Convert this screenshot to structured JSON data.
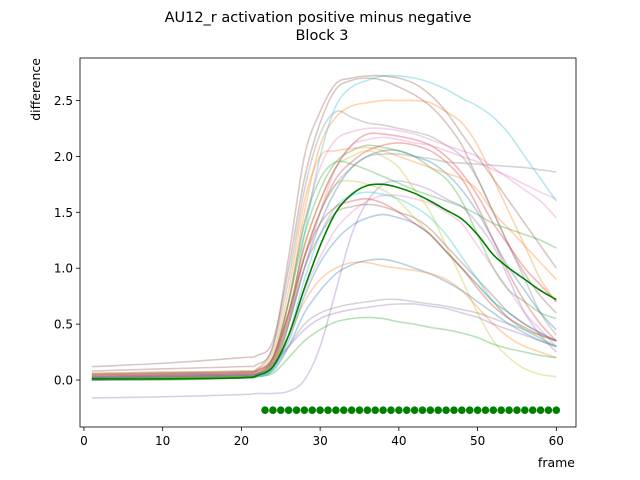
{
  "chart_data": {
    "type": "line",
    "title": "AU12_r activation positive minus negative",
    "subtitle": "Block 3",
    "xlabel": "frame",
    "ylabel": "difference",
    "xlim": [
      -0.5,
      62.5
    ],
    "ylim": [
      -0.42,
      2.88
    ],
    "x_ticks": [
      0,
      10,
      20,
      30,
      40,
      50,
      60
    ],
    "y_ticks": [
      0.0,
      0.5,
      1.0,
      1.5,
      2.0,
      2.5
    ],
    "grid": false,
    "legend": "none",
    "x_anchor_frames": [
      1,
      10,
      20,
      22,
      24,
      26,
      28,
      30,
      32,
      34,
      36,
      38,
      40,
      42,
      44,
      46,
      48,
      50,
      52,
      54,
      56,
      58,
      60
    ],
    "mean_series": {
      "color": "#008000",
      "values": [
        0.01,
        0.01,
        0.02,
        0.04,
        0.12,
        0.4,
        0.82,
        1.2,
        1.5,
        1.66,
        1.74,
        1.75,
        1.72,
        1.67,
        1.6,
        1.52,
        1.44,
        1.3,
        1.12,
        1.0,
        0.9,
        0.8,
        0.72
      ]
    },
    "individual_series": [
      {
        "color": "#1f77b4",
        "values": [
          0.02,
          0.03,
          0.04,
          0.05,
          0.15,
          0.5,
          1.0,
          1.4,
          1.7,
          1.9,
          2.0,
          2.05,
          2.05,
          2.0,
          1.95,
          1.85,
          1.7,
          1.5,
          1.25,
          1.0,
          0.8,
          0.6,
          0.45
        ]
      },
      {
        "color": "#ff7f0e",
        "values": [
          0.05,
          0.06,
          0.07,
          0.09,
          0.2,
          0.7,
          1.5,
          2.1,
          2.35,
          2.45,
          2.48,
          2.5,
          2.5,
          2.5,
          2.48,
          2.4,
          2.3,
          2.1,
          1.8,
          1.5,
          1.2,
          0.9,
          0.7
        ]
      },
      {
        "color": "#2ca02c",
        "values": [
          0.0,
          0.0,
          0.02,
          0.04,
          0.2,
          0.7,
          1.3,
          1.7,
          1.95,
          2.05,
          2.1,
          2.08,
          2.05,
          2.0,
          1.9,
          1.8,
          1.6,
          1.3,
          1.0,
          0.8,
          0.7,
          0.6,
          0.55
        ]
      },
      {
        "color": "#d62728",
        "values": [
          0.03,
          0.04,
          0.05,
          0.06,
          0.18,
          0.55,
          1.1,
          1.5,
          1.8,
          1.95,
          2.05,
          2.1,
          2.12,
          2.1,
          2.05,
          1.95,
          1.8,
          1.55,
          1.25,
          0.95,
          0.7,
          0.5,
          0.35
        ]
      },
      {
        "color": "#9467bd",
        "values": [
          -0.16,
          -0.15,
          -0.13,
          -0.12,
          -0.12,
          -0.1,
          0.0,
          0.3,
          0.8,
          1.3,
          1.6,
          1.75,
          1.78,
          1.75,
          1.7,
          1.62,
          1.55,
          1.4,
          1.2,
          0.9,
          0.6,
          0.4,
          0.25
        ]
      },
      {
        "color": "#8c564b",
        "values": [
          0.12,
          0.15,
          0.2,
          0.22,
          0.35,
          1.0,
          1.8,
          2.3,
          2.6,
          2.68,
          2.7,
          2.68,
          2.62,
          2.55,
          2.45,
          2.3,
          2.1,
          1.8,
          1.5,
          1.2,
          0.95,
          0.75,
          0.6
        ]
      },
      {
        "color": "#e377c2",
        "values": [
          0.02,
          0.03,
          0.04,
          0.06,
          0.12,
          0.4,
          0.8,
          1.1,
          1.35,
          1.5,
          1.6,
          1.65,
          1.65,
          1.62,
          1.58,
          1.5,
          1.4,
          1.2,
          1.0,
          0.8,
          0.6,
          0.45,
          0.3
        ]
      },
      {
        "color": "#7f7f7f",
        "values": [
          0.06,
          0.07,
          0.08,
          0.1,
          0.3,
          0.9,
          1.7,
          2.2,
          2.4,
          2.35,
          2.3,
          2.28,
          2.25,
          2.22,
          2.18,
          2.1,
          2.0,
          1.8,
          1.5,
          1.2,
          0.9,
          0.6,
          0.4
        ]
      },
      {
        "color": "#bcbd22",
        "values": [
          0.0,
          0.02,
          0.03,
          0.05,
          0.2,
          0.6,
          1.2,
          1.6,
          1.9,
          2.0,
          2.05,
          2.0,
          1.9,
          1.7,
          1.5,
          1.2,
          0.9,
          0.6,
          0.35,
          0.2,
          0.1,
          0.05,
          0.03
        ]
      },
      {
        "color": "#17becf",
        "values": [
          0.01,
          0.02,
          0.03,
          0.05,
          0.1,
          0.5,
          1.3,
          2.0,
          2.45,
          2.62,
          2.68,
          2.72,
          2.72,
          2.7,
          2.66,
          2.6,
          2.52,
          2.45,
          2.35,
          2.2,
          2.0,
          1.8,
          1.6
        ]
      },
      {
        "color": "#1f77b4",
        "values": [
          0.0,
          0.01,
          0.02,
          0.03,
          0.08,
          0.3,
          0.6,
          0.8,
          0.95,
          1.03,
          1.07,
          1.08,
          1.05,
          1.0,
          0.95,
          0.88,
          0.8,
          0.7,
          0.6,
          0.5,
          0.42,
          0.35,
          0.3
        ]
      },
      {
        "color": "#ff7f0e",
        "values": [
          0.04,
          0.05,
          0.06,
          0.07,
          0.15,
          0.4,
          0.7,
          0.9,
          1.0,
          1.05,
          1.05,
          1.02,
          1.0,
          0.98,
          0.95,
          0.9,
          0.8,
          0.65,
          0.5,
          0.38,
          0.3,
          0.25,
          0.2
        ]
      },
      {
        "color": "#2ca02c",
        "values": [
          0.0,
          0.01,
          0.02,
          0.03,
          0.06,
          0.2,
          0.35,
          0.45,
          0.52,
          0.55,
          0.56,
          0.55,
          0.52,
          0.5,
          0.47,
          0.45,
          0.42,
          0.38,
          0.32,
          0.28,
          0.25,
          0.22,
          0.2
        ]
      },
      {
        "color": "#d62728",
        "values": [
          0.01,
          0.02,
          0.03,
          0.05,
          0.15,
          0.6,
          1.2,
          1.6,
          1.9,
          2.1,
          2.2,
          2.2,
          2.18,
          2.15,
          2.1,
          2.0,
          1.85,
          1.65,
          1.4,
          1.2,
          1.0,
          0.85,
          0.7
        ]
      },
      {
        "color": "#9467bd",
        "values": [
          0.05,
          0.06,
          0.07,
          0.08,
          0.15,
          0.3,
          0.45,
          0.55,
          0.6,
          0.63,
          0.65,
          0.67,
          0.68,
          0.68,
          0.66,
          0.64,
          0.6,
          0.56,
          0.5,
          0.45,
          0.4,
          0.35,
          0.3
        ]
      },
      {
        "color": "#8c564b",
        "values": [
          0.02,
          0.03,
          0.04,
          0.05,
          0.12,
          0.5,
          1.0,
          1.3,
          1.5,
          1.55,
          1.57,
          1.55,
          1.5,
          1.45,
          1.35,
          1.2,
          1.05,
          0.9,
          0.75,
          0.6,
          0.5,
          0.42,
          0.35
        ]
      },
      {
        "color": "#e377c2",
        "values": [
          0.03,
          0.04,
          0.05,
          0.06,
          0.2,
          0.7,
          1.4,
          1.9,
          2.15,
          2.22,
          2.25,
          2.25,
          2.23,
          2.2,
          2.15,
          2.1,
          2.05,
          2.0,
          1.9,
          1.8,
          1.7,
          1.6,
          1.45
        ]
      },
      {
        "color": "#7f7f7f",
        "values": [
          0.02,
          0.03,
          0.04,
          0.05,
          0.1,
          0.3,
          0.5,
          0.6,
          0.65,
          0.68,
          0.7,
          0.72,
          0.72,
          0.7,
          0.68,
          0.66,
          0.63,
          0.6,
          0.55,
          0.5,
          0.45,
          0.4,
          0.35
        ]
      },
      {
        "color": "#bcbd22",
        "values": [
          0.01,
          0.02,
          0.03,
          0.05,
          0.15,
          0.5,
          1.1,
          1.5,
          1.75,
          1.78,
          1.75,
          1.7,
          1.6,
          1.45,
          1.3,
          1.15,
          1.0,
          0.85,
          0.7,
          0.55,
          0.45,
          0.38,
          0.3
        ]
      },
      {
        "color": "#17becf",
        "values": [
          0.0,
          0.01,
          0.02,
          0.03,
          0.1,
          0.4,
          0.9,
          1.3,
          1.55,
          1.65,
          1.68,
          1.66,
          1.62,
          1.55,
          1.45,
          1.3,
          1.1,
          0.9,
          0.7,
          0.55,
          0.45,
          0.37,
          0.3
        ]
      },
      {
        "color": "#1f77b4",
        "values": [
          0.03,
          0.04,
          0.05,
          0.06,
          0.12,
          0.35,
          0.75,
          1.05,
          1.25,
          1.38,
          1.45,
          1.48,
          1.45,
          1.4,
          1.3,
          1.15,
          1.0,
          0.85,
          0.7,
          0.6,
          0.5,
          0.42,
          0.35
        ]
      },
      {
        "color": "#ff7f0e",
        "values": [
          0.06,
          0.07,
          0.08,
          0.1,
          0.25,
          0.8,
          1.6,
          2.0,
          2.05,
          2.07,
          2.08,
          2.05,
          2.0,
          1.95,
          1.9,
          1.85,
          1.8,
          1.7,
          1.5,
          1.35,
          1.2,
          1.05,
          0.9
        ]
      },
      {
        "color": "#2ca02c",
        "values": [
          0.02,
          0.02,
          0.03,
          0.04,
          0.18,
          0.7,
          1.4,
          1.8,
          1.95,
          1.93,
          1.88,
          1.82,
          1.76,
          1.7,
          1.65,
          1.6,
          1.55,
          1.48,
          1.4,
          1.35,
          1.3,
          1.25,
          1.18
        ]
      },
      {
        "color": "#d62728",
        "values": [
          0.04,
          0.05,
          0.06,
          0.08,
          0.2,
          0.6,
          1.1,
          1.4,
          1.55,
          1.6,
          1.62,
          1.58,
          1.5,
          1.4,
          1.3,
          1.15,
          1.0,
          0.82,
          0.66,
          0.55,
          0.47,
          0.4,
          0.35
        ]
      },
      {
        "color": "#8c564b",
        "values": [
          0.08,
          0.1,
          0.12,
          0.14,
          0.3,
          1.1,
          2.0,
          2.4,
          2.65,
          2.7,
          2.72,
          2.72,
          2.7,
          2.65,
          2.55,
          2.4,
          2.2,
          2.0,
          1.8,
          1.6,
          1.4,
          1.2,
          1.0
        ]
      },
      {
        "color": "#e377c2",
        "values": [
          0.0,
          0.01,
          0.02,
          0.04,
          0.15,
          0.55,
          1.0,
          1.5,
          1.9,
          2.1,
          2.15,
          2.17,
          2.15,
          2.12,
          2.1,
          2.05,
          2.0,
          1.95,
          1.88,
          1.82,
          1.75,
          1.68,
          1.62
        ]
      },
      {
        "color": "#7f7f7f",
        "values": [
          0.05,
          0.06,
          0.07,
          0.09,
          0.2,
          0.6,
          1.1,
          1.5,
          1.75,
          1.9,
          2.0,
          2.02,
          2.02,
          2.0,
          1.98,
          1.95,
          1.94,
          1.93,
          1.92,
          1.91,
          1.9,
          1.88,
          1.86
        ]
      }
    ],
    "significance_marker": {
      "color": "#008000",
      "y": -0.27,
      "frames": [
        23,
        24,
        25,
        26,
        27,
        28,
        29,
        30,
        31,
        32,
        33,
        34,
        35,
        36,
        37,
        38,
        39,
        40,
        41,
        42,
        43,
        44,
        45,
        46,
        47,
        48,
        49,
        50,
        51,
        52,
        53,
        54,
        55,
        56,
        57,
        58,
        59,
        60
      ]
    }
  }
}
